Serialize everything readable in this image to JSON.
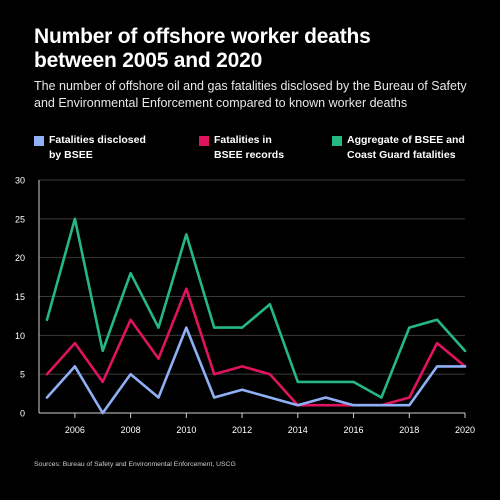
{
  "header": {
    "title_line1": "Number of offshore worker deaths",
    "title_line2": "between 2005 and 2020",
    "subtitle_line1": "The number of offshore oil and gas fatalities disclosed by the Bureau of Safety",
    "subtitle_line2": "and Environmental Enforcement compared to known worker deaths"
  },
  "legend": [
    {
      "line1": "Fatalities disclosed",
      "line2": "by BSEE",
      "color": "#8fb0f5"
    },
    {
      "line1": "Fatalities in",
      "line2": "BSEE records",
      "color": "#e0135e"
    },
    {
      "line1": "Aggregate of BSEE and",
      "line2": "Coast Guard fatalities",
      "color": "#25b883"
    }
  ],
  "source": "Sources: Bureau of Safety and Environmental Enforcement, USCG",
  "chart_data": {
    "type": "line",
    "title": "Number of offshore worker deaths between 2005 and 2020",
    "x": [
      2005,
      2006,
      2007,
      2008,
      2009,
      2010,
      2011,
      2012,
      2013,
      2014,
      2015,
      2016,
      2017,
      2018,
      2019,
      2020
    ],
    "xlim": [
      2005,
      2020
    ],
    "ylim": [
      0,
      30
    ],
    "y_ticks": [
      "0",
      "5",
      "10",
      "15",
      "20",
      "25",
      "30"
    ],
    "x_ticks": [
      "2006",
      "2008",
      "2010",
      "2012",
      "2014",
      "2016",
      "2018",
      "2020"
    ],
    "x_tick_values": [
      2006,
      2008,
      2010,
      2012,
      2014,
      2016,
      2018,
      2020
    ],
    "y_tick_values": [
      0,
      5,
      10,
      15,
      20,
      25,
      30
    ],
    "grid": "horizontal",
    "legend_position": "top",
    "series": [
      {
        "name": "Aggregate of BSEE and Coast Guard fatalities",
        "color": "#25b883",
        "values": [
          12,
          25,
          8,
          18,
          11,
          23,
          11,
          11,
          14,
          4,
          4,
          4,
          2,
          11,
          12,
          8
        ]
      },
      {
        "name": "Fatalities in BSEE records",
        "color": "#e0135e",
        "values": [
          5,
          9,
          4,
          12,
          7,
          16,
          5,
          6,
          5,
          1,
          1,
          1,
          1,
          2,
          9,
          6
        ]
      },
      {
        "name": "Fatalities disclosed by BSEE",
        "color": "#8fb0f5",
        "values": [
          2,
          6,
          0,
          5,
          2,
          11,
          2,
          3,
          2,
          1,
          2,
          1,
          1,
          1,
          6,
          6
        ]
      }
    ]
  }
}
